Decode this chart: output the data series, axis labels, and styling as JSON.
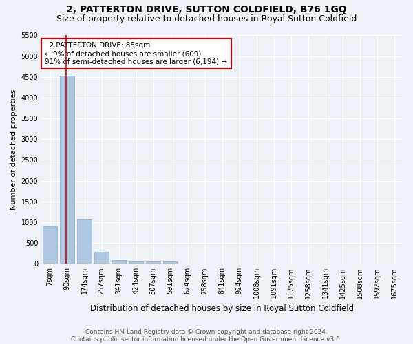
{
  "title": "2, PATTERTON DRIVE, SUTTON COLDFIELD, B76 1GQ",
  "subtitle": "Size of property relative to detached houses in Royal Sutton Coldfield",
  "xlabel": "Distribution of detached houses by size in Royal Sutton Coldfield",
  "ylabel": "Number of detached properties",
  "footer_line1": "Contains HM Land Registry data © Crown copyright and database right 2024.",
  "footer_line2": "Contains public sector information licensed under the Open Government Licence v3.0.",
  "bar_labels": [
    "7sqm",
    "90sqm",
    "174sqm",
    "257sqm",
    "341sqm",
    "424sqm",
    "507sqm",
    "591sqm",
    "674sqm",
    "758sqm",
    "841sqm",
    "924sqm",
    "1008sqm",
    "1091sqm",
    "1175sqm",
    "1258sqm",
    "1341sqm",
    "1425sqm",
    "1508sqm",
    "1592sqm",
    "1675sqm"
  ],
  "bar_values": [
    900,
    4530,
    1060,
    290,
    80,
    60,
    60,
    60,
    0,
    0,
    0,
    0,
    0,
    0,
    0,
    0,
    0,
    0,
    0,
    0,
    0
  ],
  "bar_color": "#aec6e0",
  "bar_edge_color": "#7aadd0",
  "property_label": "2 PATTERTON DRIVE: 85sqm",
  "pct_smaller": "9% of detached houses are smaller (609)",
  "pct_larger": "91% of semi-detached houses are larger (6,194)",
  "annotation_box_color": "#ffffff",
  "annotation_border_color": "#cc0000",
  "red_line_x": 0.92,
  "ylim": [
    0,
    5500
  ],
  "yticks": [
    0,
    500,
    1000,
    1500,
    2000,
    2500,
    3000,
    3500,
    4000,
    4500,
    5000,
    5500
  ],
  "background_color": "#eef2f7",
  "grid_color": "#ffffff",
  "title_fontsize": 10,
  "subtitle_fontsize": 9,
  "axis_label_fontsize": 8,
  "tick_fontsize": 7,
  "annot_fontsize": 7.5,
  "footer_fontsize": 6.5
}
